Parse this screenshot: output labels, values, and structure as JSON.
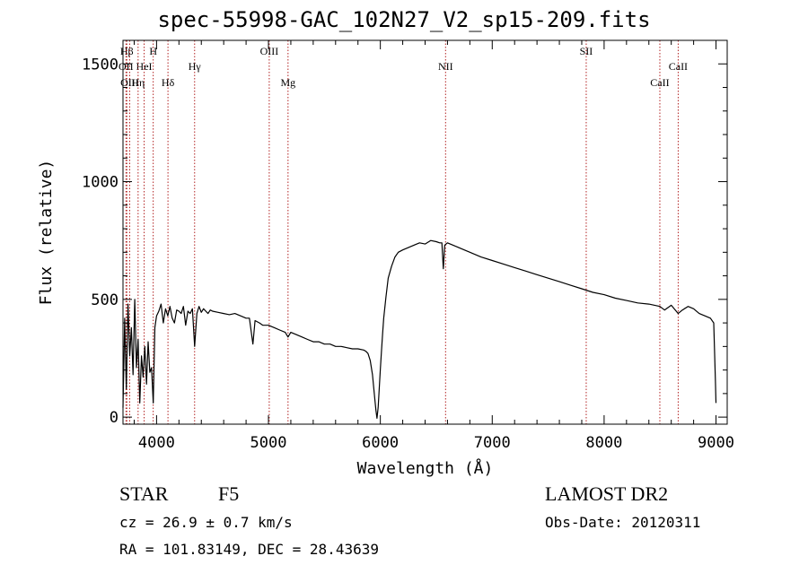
{
  "header": {
    "title": "spec-55998-GAC_102N27_V2_sp15-209.fits"
  },
  "info": {
    "object_class": "STAR",
    "subclass": "F5",
    "survey": "LAMOST DR2",
    "redshift_line": "cz = 26.9 ± 0.7 km/s",
    "obs_date": "Obs-Date: 20120311",
    "coords": "RA = 101.83149, DEC =  28.43639"
  },
  "chart_data": {
    "type": "line",
    "xlabel": "Wavelength (Å)",
    "ylabel": "Flux (relative)",
    "xlim": [
      3700,
      9100
    ],
    "ylim": [
      -30,
      1600
    ],
    "xticks": [
      4000,
      5000,
      6000,
      7000,
      8000,
      9000
    ],
    "yticks": [
      0,
      500,
      1000,
      1500
    ],
    "grid": false,
    "line_color": "#000000",
    "marker_color": "#b22222",
    "lines": [
      {
        "label": "Hβ",
        "x": 3734,
        "row": 1
      },
      {
        "label": "H",
        "x": 3970,
        "row": 1
      },
      {
        "label": "OII",
        "x": 3727,
        "row": 2
      },
      {
        "label": "HeI",
        "x": 3889,
        "row": 2
      },
      {
        "label": "Hγ",
        "x": 4340,
        "row": 2
      },
      {
        "label": "OIII",
        "x": 5007,
        "row": 1
      },
      {
        "label": "OIII",
        "x": 3760,
        "row": 3
      },
      {
        "label": "Hη",
        "x": 3835,
        "row": 3
      },
      {
        "label": "Hδ",
        "x": 4102,
        "row": 3
      },
      {
        "label": "Mg",
        "x": 5175,
        "row": 3
      },
      {
        "label": "NII",
        "x": 6583,
        "row": 2
      },
      {
        "label": "SII",
        "x": 7840,
        "row": 1
      },
      {
        "label": "CaII",
        "x": 8662,
        "row": 2
      },
      {
        "label": "CaII",
        "x": 8498,
        "row": 3
      }
    ],
    "series": [
      {
        "name": "flux",
        "x": [
          3700,
          3715,
          3730,
          3745,
          3760,
          3775,
          3790,
          3805,
          3820,
          3835,
          3850,
          3865,
          3880,
          3895,
          3910,
          3925,
          3940,
          3955,
          3970,
          3985,
          4000,
          4020,
          4040,
          4060,
          4080,
          4100,
          4120,
          4140,
          4160,
          4180,
          4200,
          4220,
          4240,
          4260,
          4280,
          4300,
          4320,
          4340,
          4360,
          4380,
          4400,
          4420,
          4440,
          4460,
          4480,
          4500,
          4550,
          4600,
          4650,
          4700,
          4750,
          4800,
          4830,
          4861,
          4880,
          4920,
          4950,
          5000,
          5050,
          5100,
          5150,
          5175,
          5200,
          5250,
          5300,
          5350,
          5400,
          5450,
          5500,
          5550,
          5600,
          5650,
          5700,
          5750,
          5800,
          5850,
          5870,
          5890,
          5910,
          5930,
          5950,
          5960,
          5970,
          5980,
          5990,
          6000,
          6010,
          6020,
          6030,
          6050,
          6070,
          6100,
          6130,
          6160,
          6200,
          6250,
          6300,
          6350,
          6400,
          6450,
          6500,
          6530,
          6550,
          6563,
          6575,
          6600,
          6650,
          6700,
          6800,
          6900,
          7000,
          7100,
          7200,
          7300,
          7400,
          7500,
          7600,
          7700,
          7800,
          7900,
          8000,
          8100,
          8200,
          8300,
          8400,
          8498,
          8540,
          8600,
          8662,
          8700,
          8750,
          8800,
          8850,
          8900,
          8950,
          8980,
          8995,
          9000
        ],
        "y": [
          40,
          420,
          120,
          480,
          260,
          380,
          180,
          500,
          210,
          330,
          60,
          260,
          170,
          300,
          140,
          320,
          190,
          210,
          60,
          380,
          430,
          450,
          480,
          400,
          460,
          430,
          470,
          420,
          400,
          455,
          450,
          440,
          470,
          390,
          450,
          440,
          460,
          300,
          440,
          470,
          445,
          460,
          450,
          440,
          455,
          450,
          445,
          440,
          435,
          440,
          430,
          420,
          420,
          310,
          410,
          400,
          390,
          390,
          380,
          370,
          360,
          340,
          360,
          350,
          340,
          330,
          320,
          320,
          310,
          310,
          300,
          300,
          295,
          290,
          290,
          285,
          280,
          270,
          240,
          180,
          80,
          30,
          -5,
          40,
          120,
          200,
          280,
          350,
          420,
          510,
          590,
          640,
          680,
          700,
          710,
          720,
          730,
          740,
          735,
          750,
          745,
          740,
          740,
          630,
          730,
          740,
          730,
          720,
          700,
          680,
          665,
          650,
          635,
          620,
          605,
          590,
          575,
          560,
          545,
          530,
          520,
          505,
          495,
          485,
          480,
          470,
          455,
          475,
          440,
          455,
          470,
          460,
          440,
          430,
          420,
          400,
          150,
          60
        ]
      }
    ]
  }
}
